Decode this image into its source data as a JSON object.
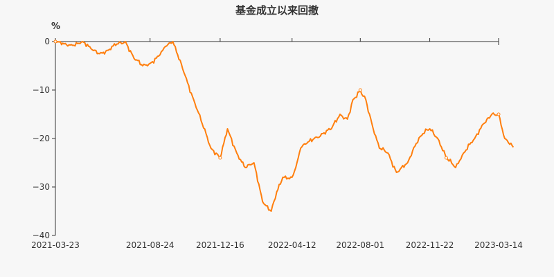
{
  "chart_data": {
    "type": "line",
    "title": "基金成立以来回撤",
    "ylabel": "%",
    "xlabel": "",
    "ylim": [
      -40,
      0
    ],
    "yticks": [
      0,
      -10,
      -20,
      -30,
      -40
    ],
    "xticks": [
      "2021-03-23",
      "2021-08-24",
      "2021-12-16",
      "2022-04-12",
      "2022-08-01",
      "2022-11-22",
      "2023-03-14"
    ],
    "grid": false,
    "legend": "none",
    "line_color": "#ff7f0e",
    "series": [
      {
        "name": "",
        "x": [
          "2021-03-23",
          "2021-04-06",
          "2021-04-20",
          "2021-05-06",
          "2021-05-20",
          "2021-06-03",
          "2021-06-17",
          "2021-07-01",
          "2021-07-15",
          "2021-07-29",
          "2021-08-12",
          "2021-08-24",
          "2021-09-07",
          "2021-09-18",
          "2021-09-30",
          "2021-10-20",
          "2021-11-03",
          "2021-11-17",
          "2021-12-01",
          "2021-12-16",
          "2021-12-28",
          "2022-01-12",
          "2022-01-26",
          "2022-02-09",
          "2022-02-23",
          "2022-03-09",
          "2022-03-18",
          "2022-03-28",
          "2022-04-12",
          "2022-04-20",
          "2022-04-26",
          "2022-05-06",
          "2022-05-18",
          "2022-06-01",
          "2022-06-15",
          "2022-06-29",
          "2022-07-11",
          "2022-07-20",
          "2022-08-01",
          "2022-08-10",
          "2022-08-22",
          "2022-09-01",
          "2022-09-15",
          "2022-09-29",
          "2022-10-17",
          "2022-10-31",
          "2022-11-11",
          "2022-11-22",
          "2022-12-05",
          "2022-12-19",
          "2023-01-03",
          "2023-01-16",
          "2023-02-03",
          "2023-02-17",
          "2023-03-03",
          "2023-03-14",
          "2023-03-24",
          "2023-04-07"
        ],
        "values": [
          0,
          -0.5,
          -0.8,
          0,
          -1.5,
          -2.5,
          -1.8,
          -0.5,
          0,
          -3.5,
          -5,
          -4.5,
          -3,
          -1,
          0,
          -7,
          -12,
          -17,
          -22,
          -24,
          -18,
          -23,
          -26,
          -25,
          -33,
          -35,
          -31,
          -28,
          -28,
          -25,
          -22,
          -21,
          -20,
          -19,
          -18,
          -15,
          -16,
          -12,
          -10,
          -12,
          -18,
          -22,
          -23,
          -27,
          -25,
          -21,
          -19,
          -18,
          -20,
          -24,
          -26,
          -23,
          -20,
          -17,
          -15,
          -15,
          -20,
          -21.8
        ]
      }
    ]
  }
}
